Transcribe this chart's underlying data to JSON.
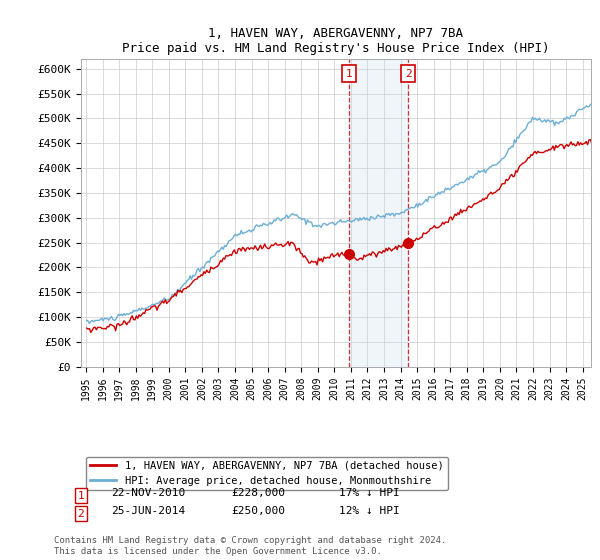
{
  "title": "1, HAVEN WAY, ABERGAVENNY, NP7 7BA",
  "subtitle": "Price paid vs. HM Land Registry's House Price Index (HPI)",
  "legend_line1": "1, HAVEN WAY, ABERGAVENNY, NP7 7BA (detached house)",
  "legend_line2": "HPI: Average price, detached house, Monmouthshire",
  "annotation1_date": "22-NOV-2010",
  "annotation1_price": "£228,000",
  "annotation1_hpi": "17% ↓ HPI",
  "annotation2_date": "25-JUN-2014",
  "annotation2_price": "£250,000",
  "annotation2_hpi": "12% ↓ HPI",
  "footnote": "Contains HM Land Registry data © Crown copyright and database right 2024.\nThis data is licensed under the Open Government Licence v3.0.",
  "hpi_color": "#6baed6",
  "price_color": "#cc0000",
  "annotation_color": "#cc0000",
  "shade_color": "#c6dbef",
  "ylim": [
    0,
    620000
  ],
  "yticks": [
    0,
    50000,
    100000,
    150000,
    200000,
    250000,
    300000,
    350000,
    400000,
    450000,
    500000,
    550000,
    600000
  ]
}
